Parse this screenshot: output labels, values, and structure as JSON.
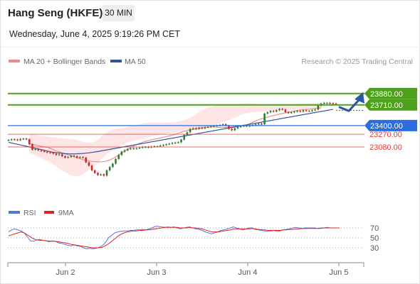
{
  "header": {
    "title": "Hang Seng (HKFE)",
    "interval": "30 MIN",
    "datetime": "Wednesday, June 4, 2025 9:19:26 PM CET"
  },
  "legend": {
    "bollinger": "MA 20 + Bollinger Bands",
    "ma50": "MA 50",
    "credit": "Research © 2025 Trading Central",
    "rsi": "RSI",
    "rsi_ma": "9MA"
  },
  "colors": {
    "resistance": "#4ea01b",
    "current": "#2a6ee0",
    "support": "#e53935",
    "ma20": "#f08a8a",
    "band_fill": "#fde2e2",
    "ma50": "#33559b",
    "candle_up": "#2e7d32",
    "candle_down": "#c62828",
    "arrow": "#2d56a3",
    "rsi": "#5577dd",
    "rsi_ma": "#dd2222"
  },
  "chart_data": [
    {
      "type": "candlestick",
      "ylim": [
        22250,
        24250
      ],
      "x_tick_labels": [
        "Jun 2",
        "Jun 3",
        "Jun 4",
        "Jun 5"
      ],
      "levels": [
        {
          "label": "23880.00",
          "value": 23880,
          "kind": "resistance"
        },
        {
          "label": "23710.00",
          "value": 23710,
          "kind": "resistance"
        },
        {
          "label": "23400.00",
          "value": 23400,
          "kind": "current"
        },
        {
          "label": "23270.00",
          "value": 23270,
          "kind": "support"
        },
        {
          "label": "23080.00",
          "value": 23080,
          "kind": "support"
        }
      ],
      "close": [
        23185,
        23195,
        23190,
        23180,
        23200,
        23205,
        23195,
        23120,
        23040,
        23050,
        23030,
        23020,
        23010,
        23000,
        22990,
        22980,
        22960,
        22970,
        22940,
        22920,
        22930,
        22950,
        22940,
        22920,
        22930,
        22920,
        22850,
        22800,
        22730,
        22690,
        22660,
        22670,
        22650,
        22730,
        22780,
        22830,
        22900,
        22960,
        23010,
        23030,
        23050,
        23060,
        23055,
        23060,
        23070,
        23080,
        23080,
        23075,
        23085,
        23090,
        23090,
        23100,
        23110,
        23120,
        23130,
        23140,
        23145,
        23150,
        23190,
        23260,
        23300,
        23350,
        23360,
        23350,
        23370,
        23360,
        23375,
        23380,
        23390,
        23395,
        23400,
        23410,
        23420,
        23400,
        23350,
        23330,
        23360,
        23380,
        23390,
        23400,
        23390,
        23400,
        23410,
        23420,
        23430,
        23420,
        23580,
        23600,
        23620,
        23610,
        23630,
        23650,
        23640,
        23600,
        23590,
        23600,
        23610,
        23620,
        23610,
        23630,
        23620,
        23620,
        23630,
        23640,
        23700,
        23730,
        23740,
        23740,
        23735,
        23730,
        23725
      ],
      "ma20": [
        23130,
        23120,
        23110,
        23100,
        23090,
        23080,
        23075,
        23060,
        23040,
        23020,
        23010,
        22990,
        22975,
        22965,
        22950,
        22935,
        22920,
        22905,
        22890,
        22880,
        22870,
        22865,
        22860,
        22858,
        22858,
        22860,
        22870,
        22885,
        22905,
        22930,
        22960,
        22990,
        23020,
        23045,
        23070,
        23095,
        23115,
        23135,
        23150,
        23165,
        23175,
        23185,
        23195,
        23205,
        23215,
        23225,
        23235,
        23245,
        23255,
        23270,
        23285,
        23300,
        23315,
        23325,
        23335,
        23345,
        23352,
        23360,
        23367,
        23372,
        23377,
        23380,
        23380,
        23375,
        23372,
        23372,
        23372,
        23377,
        23382,
        23388,
        23393,
        23398,
        23403,
        23408,
        23428,
        23450,
        23470,
        23488,
        23502,
        23515,
        23527,
        23540,
        23552,
        23561,
        23572,
        23582,
        23592,
        23602,
        23610,
        23618,
        23626,
        23634,
        23640,
        23643,
        23646,
        23650,
        23655,
        23660,
        23665
      ],
      "bb_upper": [
        23270,
        23270,
        23260,
        23250,
        23245,
        23240,
        23235,
        23230,
        23225,
        23220,
        23215,
        23210,
        23205,
        23200,
        23195,
        23190,
        23180,
        23170,
        23160,
        23150,
        23140,
        23145,
        23160,
        23190,
        23230,
        23270,
        23300,
        23320,
        23335,
        23345,
        23352,
        23360,
        23370,
        23380,
        23390,
        23400,
        23410,
        23420,
        23430,
        23440,
        23445,
        23448,
        23450,
        23448,
        23445,
        23440,
        23440,
        23445,
        23450,
        23455,
        23460,
        23470,
        23480,
        23500,
        23520,
        23540,
        23570,
        23600,
        23630,
        23650,
        23670,
        23680,
        23690,
        23700,
        23700,
        23700,
        23705,
        23708,
        23710,
        23715,
        23720,
        23725,
        23730,
        23735,
        23735,
        23733,
        23730,
        23725,
        23720,
        23715,
        23712,
        23710,
        23710,
        23712,
        23714,
        23716,
        23718,
        23720,
        23722,
        23724,
        23726,
        23728,
        23730,
        23732,
        23734,
        23736,
        23738,
        23740,
        23742
      ],
      "bb_lower": [
        22990,
        22970,
        22950,
        22930,
        22910,
        22890,
        22870,
        22850,
        22820,
        22790,
        22760,
        22730,
        22700,
        22680,
        22660,
        22640,
        22640,
        22650,
        22670,
        22700,
        22730,
        22760,
        22800,
        22840,
        22890,
        22930,
        22970,
        23000,
        23030,
        23060,
        23090,
        23110,
        23130,
        23150,
        23165,
        23175,
        23185,
        23195,
        23205,
        23215,
        23225,
        23235,
        23245,
        23255,
        23265,
        23275,
        23285,
        23290,
        23295,
        23300,
        23305,
        23310,
        23315,
        23320,
        23325,
        23330,
        23335,
        23340,
        23350,
        23360,
        23375,
        23390,
        23405,
        23420,
        23435,
        23450,
        23465,
        23480,
        23500,
        23520,
        23540,
        23560,
        23575,
        23585,
        23590,
        23595,
        23600,
        23605,
        23610,
        23615,
        23620,
        23625,
        23630,
        23632,
        23634,
        23636,
        23638,
        23640,
        23642,
        23644,
        23646,
        23648,
        23650,
        23652,
        23654,
        23656,
        23658,
        23660,
        23662
      ],
      "ma50": [
        23150,
        23140,
        23130,
        23120,
        23110,
        23100,
        23090,
        23080,
        23070,
        23060,
        23050,
        23040,
        23030,
        23020,
        23010,
        23000,
        22995,
        22990,
        22985,
        22980,
        22978,
        22977,
        22977,
        22978,
        22980,
        22983,
        22987,
        22992,
        22998,
        23005,
        23012,
        23020,
        23028,
        23036,
        23044,
        23052,
        23060,
        23068,
        23076,
        23084,
        23092,
        23100,
        23108,
        23116,
        23124,
        23132,
        23140,
        23148,
        23156,
        23164,
        23172,
        23180,
        23188,
        23196,
        23204,
        23212,
        23220,
        23228,
        23236,
        23244,
        23252,
        23260,
        23268,
        23276,
        23284,
        23292,
        23300,
        23308,
        23316,
        23324,
        23332,
        23340,
        23348,
        23356,
        23364,
        23372,
        23380,
        23388,
        23396,
        23404,
        23412,
        23420,
        23428,
        23436,
        23444,
        23452,
        23460,
        23468,
        23476,
        23484,
        23492,
        23500,
        23508,
        23516,
        23524,
        23532,
        23540,
        23548,
        23556,
        23564,
        23572,
        23580,
        23588,
        23596,
        23604,
        23612,
        23620,
        23628,
        23636,
        23644
      ]
    },
    {
      "type": "line",
      "ylim": [
        0,
        100
      ],
      "y_tick_labels": [
        "70",
        "50",
        "30"
      ],
      "y_tick_values": [
        70,
        50,
        30
      ],
      "series": [
        {
          "name": "RSI",
          "values": [
            62,
            66,
            68,
            66,
            64,
            60,
            52,
            44,
            43,
            46,
            47,
            45,
            44,
            42,
            44,
            43,
            40,
            39,
            37,
            35,
            34,
            36,
            34,
            33,
            30,
            28,
            29,
            28,
            29,
            31,
            34,
            40,
            50,
            55,
            60,
            62,
            63,
            64,
            64,
            65,
            65,
            66,
            66,
            67,
            66,
            68,
            70,
            73,
            73,
            72,
            71,
            72,
            71,
            72,
            70,
            68,
            70,
            71,
            72,
            70,
            68,
            67,
            65,
            62,
            60,
            58,
            60,
            62,
            65,
            66,
            68,
            70,
            72,
            70,
            68,
            66,
            68,
            70,
            70,
            67,
            66,
            65,
            64,
            63,
            64,
            65,
            63,
            64,
            66,
            67,
            68,
            70,
            71,
            70,
            69,
            70,
            70,
            70,
            70,
            69,
            70,
            70,
            71,
            70,
            70,
            70,
            70
          ]
        },
        {
          "name": "9MA",
          "values": [
            54,
            56,
            58,
            60,
            62,
            60,
            56,
            52,
            48,
            46,
            45,
            45,
            44,
            44,
            43,
            43,
            42,
            41,
            40,
            39,
            37,
            36,
            35,
            34,
            33,
            32,
            31,
            30,
            30,
            30,
            31,
            34,
            38,
            43,
            48,
            53,
            57,
            60,
            62,
            63,
            64,
            64,
            65,
            65,
            66,
            66,
            67,
            68,
            69,
            70,
            71,
            71,
            71,
            71,
            71,
            70,
            70,
            70,
            71,
            70,
            70,
            69,
            68,
            66,
            64,
            62,
            62,
            62,
            63,
            64,
            65,
            66,
            68,
            68,
            68,
            68,
            68,
            68,
            69,
            68,
            67,
            66,
            66,
            65,
            65,
            65,
            65,
            65,
            66,
            66,
            67,
            67,
            68,
            68,
            69,
            69,
            69,
            69,
            69,
            69,
            69,
            70,
            70,
            70,
            70,
            70,
            70
          ]
        }
      ]
    }
  ]
}
